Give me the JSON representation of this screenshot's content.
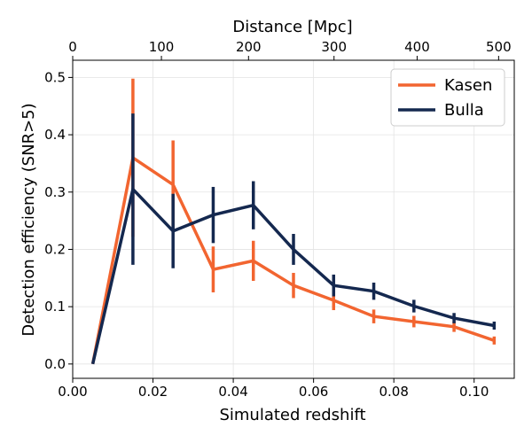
{
  "chart_data": {
    "type": "line",
    "x": [
      0.005,
      0.015,
      0.025,
      0.035,
      0.045,
      0.055,
      0.065,
      0.075,
      0.085,
      0.095,
      0.105
    ],
    "xlabel": "Simulated redshift",
    "ylabel": "Detection efficiency (SNR>5)",
    "top_xlabel": "Distance [Mpc]",
    "xlim": [
      0.0,
      0.11
    ],
    "ylim": [
      -0.025,
      0.53
    ],
    "xticks": [
      0.0,
      0.02,
      0.04,
      0.06,
      0.08,
      0.1
    ],
    "xtick_labels": [
      "0.00",
      "0.02",
      "0.04",
      "0.06",
      "0.08",
      "0.10"
    ],
    "yticks": [
      0.0,
      0.1,
      0.2,
      0.3,
      0.4,
      0.5
    ],
    "ytick_labels": [
      "0.0",
      "0.1",
      "0.2",
      "0.3",
      "0.4",
      "0.5"
    ],
    "top_ticks": [
      {
        "label": "0",
        "x": 0.0
      },
      {
        "label": "100",
        "x": 0.0221
      },
      {
        "label": "200",
        "x": 0.0438
      },
      {
        "label": "300",
        "x": 0.0651
      },
      {
        "label": "400",
        "x": 0.0858
      },
      {
        "label": "500",
        "x": 0.1061
      }
    ],
    "grid": true,
    "legend_position": "top-right",
    "series": [
      {
        "name": "Kasen",
        "color": "#f26530",
        "values": [
          0.0,
          0.36,
          0.313,
          0.165,
          0.18,
          0.137,
          0.111,
          0.083,
          0.074,
          0.065,
          0.041
        ],
        "err": [
          0.0,
          0.138,
          0.077,
          0.04,
          0.035,
          0.022,
          0.017,
          0.012,
          0.01,
          0.009,
          0.007
        ]
      },
      {
        "name": "Bulla",
        "color": "#14284f",
        "values": [
          0.0,
          0.305,
          0.232,
          0.26,
          0.277,
          0.2,
          0.137,
          0.127,
          0.101,
          0.08,
          0.067
        ],
        "err": [
          0.0,
          0.132,
          0.065,
          0.049,
          0.042,
          0.027,
          0.019,
          0.015,
          0.011,
          0.009,
          0.007
        ]
      }
    ]
  }
}
